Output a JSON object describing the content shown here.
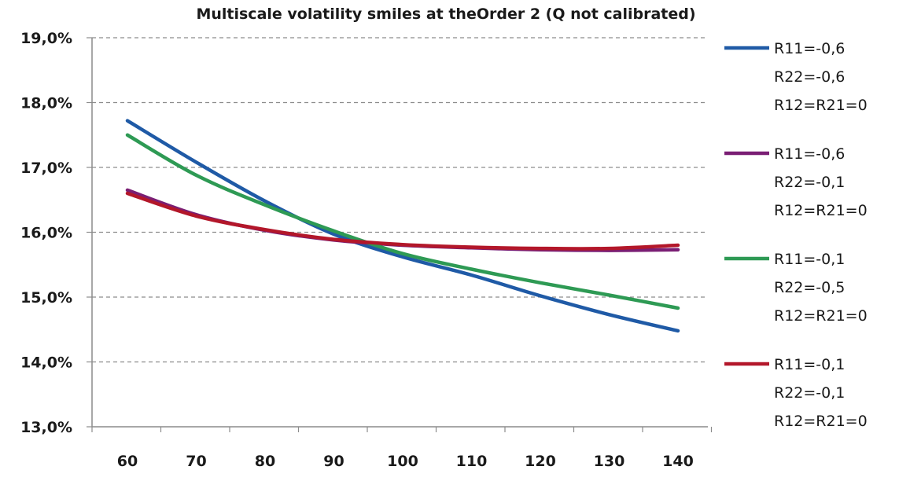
{
  "chart_data": {
    "type": "line",
    "title": "Multiscale volatility smiles at theOrder 2 (Q not calibrated)",
    "xlabel": "",
    "ylabel": "",
    "x": [
      60,
      70,
      80,
      90,
      100,
      110,
      120,
      130,
      140
    ],
    "ylim": [
      13.0,
      19.0
    ],
    "y_ticks": [
      "13,0%",
      "14,0%",
      "15,0%",
      "16,0%",
      "17,0%",
      "18,0%",
      "19,0%"
    ],
    "y_tick_values": [
      13,
      14,
      15,
      16,
      17,
      18,
      19
    ],
    "x_ticks": [
      "60",
      "70",
      "80",
      "90",
      "100",
      "110",
      "120",
      "130",
      "140"
    ],
    "grid": true,
    "legend_position": "right",
    "series": [
      {
        "name_lines": [
          "R11=-0,6",
          "R22=-0,6",
          "R12=R21=0"
        ],
        "color": "#1f5aa6",
        "values": [
          17.72,
          17.08,
          16.48,
          15.97,
          15.62,
          15.34,
          15.02,
          14.73,
          14.48
        ]
      },
      {
        "name_lines": [
          "R11=-0,6",
          "R22=-0,1",
          "R12=R21=0"
        ],
        "color": "#7a1e74",
        "values": [
          16.65,
          16.27,
          16.03,
          15.88,
          15.8,
          15.76,
          15.73,
          15.72,
          15.73
        ]
      },
      {
        "name_lines": [
          "R11=-0,1",
          "R22=-0,5",
          "R12=R21=0"
        ],
        "color": "#2e9a54",
        "values": [
          17.5,
          16.88,
          16.42,
          16.02,
          15.67,
          15.43,
          15.22,
          15.03,
          14.83
        ]
      },
      {
        "name_lines": [
          "R11=-0,1",
          "R22=-0,1",
          "R12=R21=0"
        ],
        "color": "#b3172a",
        "values": [
          16.6,
          16.25,
          16.04,
          15.89,
          15.81,
          15.77,
          15.75,
          15.75,
          15.8
        ]
      }
    ]
  }
}
